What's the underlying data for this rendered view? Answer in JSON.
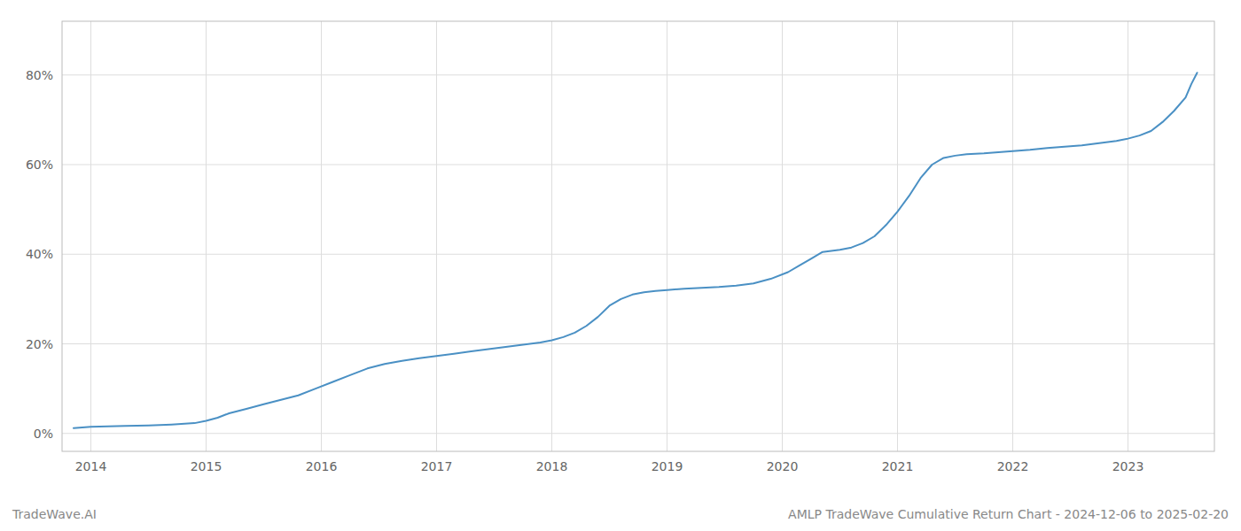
{
  "chart_data": {
    "type": "line",
    "title": "AMLP TradeWave Cumulative Return Chart - 2024-12-06 to 2025-02-20",
    "annotations": [
      "TradeWave.AI"
    ],
    "color": "#4a90c4",
    "grid": true,
    "x": [
      2013.85,
      2014.0,
      2014.15,
      2014.3,
      2014.5,
      2014.7,
      2014.9,
      2015.0,
      2015.1,
      2015.2,
      2015.35,
      2015.5,
      2015.65,
      2015.8,
      2015.95,
      2016.1,
      2016.25,
      2016.4,
      2016.55,
      2016.7,
      2016.85,
      2017.0,
      2017.15,
      2017.3,
      2017.45,
      2017.6,
      2017.75,
      2017.9,
      2018.0,
      2018.1,
      2018.2,
      2018.3,
      2018.4,
      2018.5,
      2018.6,
      2018.7,
      2018.8,
      2018.9,
      2019.0,
      2019.15,
      2019.3,
      2019.45,
      2019.6,
      2019.75,
      2019.9,
      2020.05,
      2020.15,
      2020.25,
      2020.35,
      2020.5,
      2020.6,
      2020.7,
      2020.8,
      2020.9,
      2021.0,
      2021.1,
      2021.2,
      2021.3,
      2021.4,
      2021.5,
      2021.6,
      2021.75,
      2021.9,
      2022.0,
      2022.15,
      2022.3,
      2022.45,
      2022.6,
      2022.75,
      2022.9,
      2023.0,
      2023.1,
      2023.2,
      2023.3,
      2023.4,
      2023.5,
      2023.55,
      2023.6
    ],
    "values": [
      1.2,
      1.5,
      1.6,
      1.7,
      1.8,
      2.0,
      2.3,
      2.8,
      3.5,
      4.5,
      5.5,
      6.5,
      7.5,
      8.5,
      10.0,
      11.5,
      13.0,
      14.5,
      15.5,
      16.2,
      16.8,
      17.3,
      17.8,
      18.3,
      18.8,
      19.3,
      19.8,
      20.3,
      20.8,
      21.5,
      22.5,
      24.0,
      26.0,
      28.5,
      30.0,
      31.0,
      31.5,
      31.8,
      32.0,
      32.3,
      32.5,
      32.7,
      33.0,
      33.5,
      34.5,
      36.0,
      37.5,
      39.0,
      40.5,
      41.0,
      41.5,
      42.5,
      44.0,
      46.5,
      49.5,
      53.0,
      57.0,
      60.0,
      61.5,
      62.0,
      62.3,
      62.5,
      62.8,
      63.0,
      63.3,
      63.7,
      64.0,
      64.3,
      64.8,
      65.3,
      65.8,
      66.5,
      67.5,
      69.5,
      72.0,
      75.0,
      78.0,
      80.5
    ],
    "xlim": [
      2013.75,
      2023.75
    ],
    "xticks": [
      2014,
      2015,
      2016,
      2017,
      2018,
      2019,
      2020,
      2021,
      2022,
      2023
    ],
    "ylim": [
      -4,
      92
    ],
    "yticks": [
      {
        "value": 0,
        "label": "0%"
      },
      {
        "value": 20,
        "label": "20%"
      },
      {
        "value": 40,
        "label": "40%"
      },
      {
        "value": 60,
        "label": "60%"
      },
      {
        "value": 80,
        "label": "80%"
      }
    ]
  }
}
